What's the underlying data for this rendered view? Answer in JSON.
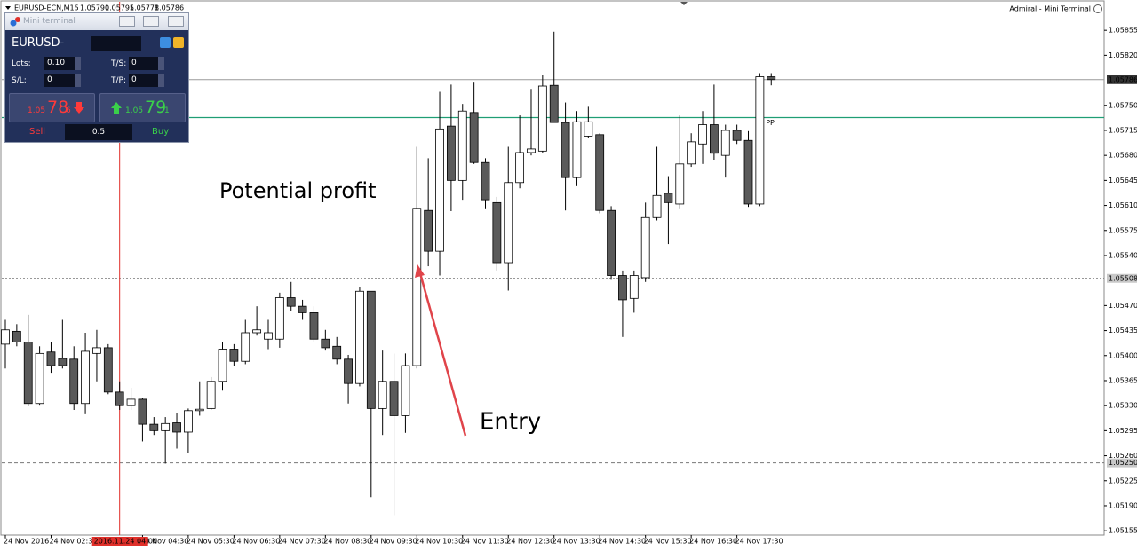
{
  "window": {
    "title": "EURUSD-ECN,M15",
    "quotes": [
      "1.05790",
      "1.05795",
      "1.05778",
      "1.05786"
    ],
    "right_title": "Admiral - Mini Terminal"
  },
  "mini_terminal": {
    "title": "Mini terminal",
    "symbol": "EURUSD-",
    "lots_label": "Lots:",
    "lots": "0.10",
    "ts_label": "T/S:",
    "ts": "0",
    "sl_label": "S/L:",
    "sl": "0",
    "tp_label": "T/P:",
    "tp": "0",
    "sell_price": [
      "1.05",
      "78",
      "6"
    ],
    "buy_price": [
      "1.05",
      "79",
      "1"
    ],
    "sell": "Sell",
    "volume": "0.5",
    "buy": "Buy"
  },
  "annotations": {
    "profit": "Potential profit",
    "entry": "Entry"
  },
  "chart_data": {
    "type": "candlestick",
    "x": [
      0,
      1,
      2,
      3,
      4,
      5,
      6,
      7,
      8,
      9,
      10,
      11,
      12,
      13,
      14,
      15,
      16,
      17,
      18,
      19,
      20,
      21,
      22,
      23,
      24,
      25,
      26,
      27,
      28,
      29,
      30,
      31,
      32,
      33,
      34,
      35,
      36,
      37,
      38,
      39,
      40,
      41,
      42,
      43,
      44,
      45,
      46,
      47,
      48,
      49,
      50,
      51,
      52,
      53,
      54,
      55,
      56,
      57,
      58,
      59,
      60,
      61,
      62,
      63,
      64,
      65,
      66,
      67
    ],
    "open": [
      1.05416,
      1.05434,
      1.05419,
      1.05333,
      1.05405,
      1.05396,
      1.05395,
      1.05333,
      1.05403,
      1.05411,
      1.05349,
      1.0533,
      1.05339,
      1.05304,
      1.05295,
      1.05306,
      1.05293,
      1.05323,
      1.05326,
      1.05364,
      1.05409,
      1.05392,
      1.05432,
      1.05423,
      1.05423,
      1.05481,
      1.05469,
      1.0546,
      1.05423,
      1.05413,
      1.05395,
      1.05361,
      1.0549,
      1.05326,
      1.05364,
      1.05316,
      1.05386,
      1.05603,
      1.05546,
      1.05721,
      1.05645,
      1.0574,
      1.0567,
      1.05614,
      1.0553,
      1.05642,
      1.05684,
      1.05686,
      1.05778,
      1.05726,
      1.05649,
      1.05707,
      1.05709,
      1.05603,
      1.05512,
      1.0548,
      1.05509,
      1.05593,
      1.05627,
      1.05612,
      1.05668,
      1.05696,
      1.05723,
      1.0568,
      1.05715,
      1.05701,
      1.05612,
      1.0579
    ],
    "high": [
      1.0545,
      1.05444,
      1.05457,
      1.05413,
      1.05419,
      1.0545,
      1.05413,
      1.05432,
      1.05436,
      1.05416,
      1.05364,
      1.05355,
      1.05341,
      1.05314,
      1.05314,
      1.0532,
      1.05326,
      1.05364,
      1.0537,
      1.05419,
      1.05416,
      1.0545,
      1.05469,
      1.0545,
      1.05488,
      1.05503,
      1.05478,
      1.05469,
      1.05436,
      1.05426,
      1.05401,
      1.05496,
      1.0549,
      1.05407,
      1.05403,
      1.05403,
      1.05692,
      1.05676,
      1.05769,
      1.05779,
      1.05752,
      1.05783,
      1.05676,
      1.05622,
      1.05692,
      1.05736,
      1.05773,
      1.05792,
      1.05853,
      1.05754,
      1.05742,
      1.05748,
      1.05711,
      1.05609,
      1.05519,
      1.05519,
      1.05614,
      1.05692,
      1.05651,
      1.05736,
      1.05711,
      1.05742,
      1.05779,
      1.05723,
      1.05723,
      1.05714,
      1.05795,
      1.05795
    ],
    "low": [
      1.05382,
      1.05413,
      1.05329,
      1.0533,
      1.05376,
      1.05382,
      1.05324,
      1.05318,
      1.05364,
      1.05346,
      1.05324,
      1.05324,
      1.0528,
      1.05289,
      1.05249,
      1.0527,
      1.05264,
      1.05316,
      1.05324,
      1.05351,
      1.05386,
      1.05388,
      1.05428,
      1.05409,
      1.05411,
      1.05463,
      1.0545,
      1.05419,
      1.05407,
      1.05388,
      1.05333,
      1.05357,
      1.05202,
      1.05289,
      1.05177,
      1.05292,
      1.05382,
      1.05525,
      1.05512,
      1.05602,
      1.05618,
      1.05668,
      1.05606,
      1.05519,
      1.05491,
      1.05634,
      1.0568,
      1.05684,
      1.05726,
      1.05603,
      1.05637,
      1.05705,
      1.05599,
      1.05506,
      1.05426,
      1.0546,
      1.05503,
      1.05589,
      1.05556,
      1.05606,
      1.05664,
      1.05668,
      1.05674,
      1.05649,
      1.05696,
      1.05608,
      1.05609,
      1.05778
    ],
    "close": [
      1.05436,
      1.05419,
      1.05333,
      1.05403,
      1.05386,
      1.05386,
      1.05333,
      1.05406,
      1.05411,
      1.05349,
      1.0533,
      1.05339,
      1.05304,
      1.05295,
      1.05305,
      1.05293,
      1.05323,
      1.05325,
      1.05364,
      1.05409,
      1.05392,
      1.05432,
      1.05436,
      1.05432,
      1.05481,
      1.05469,
      1.0546,
      1.05423,
      1.05411,
      1.05395,
      1.05361,
      1.0549,
      1.05326,
      1.05364,
      1.05316,
      1.05386,
      1.05606,
      1.05546,
      1.05717,
      1.05645,
      1.05742,
      1.0567,
      1.05618,
      1.0553,
      1.05642,
      1.05684,
      1.05689,
      1.05777,
      1.05726,
      1.05649,
      1.05727,
      1.05727,
      1.05603,
      1.05512,
      1.05478,
      1.05512,
      1.05593,
      1.05624,
      1.05614,
      1.05668,
      1.05699,
      1.05723,
      1.05683,
      1.05715,
      1.05701,
      1.05612,
      1.0579,
      1.05786
    ],
    "up_color": "#ffffff",
    "down_color": "#5a5a5a",
    "xlim": [
      -0.31,
      96.12
    ],
    "xticks": [
      {
        "value": 0,
        "label": "24 Nov 2016"
      },
      {
        "value": 4,
        "label": "24 Nov 02:30"
      },
      {
        "value": 12,
        "label": "24 Nov 04:30"
      },
      {
        "value": 16,
        "label": "24 Nov 05:30"
      },
      {
        "value": 20,
        "label": "24 Nov 06:30"
      },
      {
        "value": 24,
        "label": "24 Nov 07:30"
      },
      {
        "value": 28,
        "label": "24 Nov 08:30"
      },
      {
        "value": 32,
        "label": "24 Nov 09:30"
      },
      {
        "value": 36,
        "label": "24 Nov 10:30"
      },
      {
        "value": 40,
        "label": "24 Nov 11:30"
      },
      {
        "value": 44,
        "label": "24 Nov 12:30"
      },
      {
        "value": 48,
        "label": "24 Nov 13:30"
      },
      {
        "value": 52,
        "label": "24 Nov 14:30"
      },
      {
        "value": 56,
        "label": "24 Nov 15:30"
      },
      {
        "value": 60,
        "label": "24 Nov 16:30"
      },
      {
        "value": 64,
        "label": "24 Nov 17:30"
      }
    ],
    "crosshair": {
      "value": 10,
      "label": "2016.11.24 04:00",
      "color": "#e0302a"
    },
    "ylim": [
      1.05149,
      1.05885
    ],
    "yticks": [
      1.05855,
      {
        "value": 1.0582,
        "label": "1.05820"
      },
      {
        "value": 1.0575,
        "label": "1.05750"
      },
      1.05715,
      {
        "value": 1.0568,
        "label": "1.05680"
      },
      1.05645,
      {
        "value": 1.0561,
        "label": "1.05610"
      },
      1.05575,
      {
        "value": 1.0554,
        "label": "1.05540"
      },
      {
        "value": 1.0547,
        "label": "1.05470"
      },
      1.05435,
      {
        "value": 1.054,
        "label": "1.05400"
      },
      1.05365,
      {
        "value": 1.0533,
        "label": "1.05330"
      },
      1.05295,
      {
        "value": 1.0526,
        "label": "1.05260"
      },
      1.05225,
      {
        "value": 1.0519,
        "label": "1.05190"
      },
      1.05155
    ],
    "price_lines": [
      {
        "value": 1.05786,
        "style": "solid",
        "color": "#9a9a9a",
        "tag": "#333333"
      },
      {
        "value": 1.05508,
        "style": "dotted",
        "color": "#777777",
        "tag": "#c8c8c8"
      },
      {
        "value": 1.0525,
        "label": "1.05250",
        "style": "dashed",
        "color": "#777777",
        "tag": "#c8c8c8"
      }
    ],
    "pivot": {
      "name": "PP",
      "value": 1.05733,
      "color": "#1f9e74"
    }
  }
}
